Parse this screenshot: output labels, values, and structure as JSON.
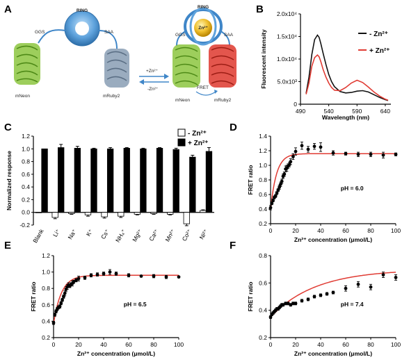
{
  "panels": {
    "A": {
      "letter": "A",
      "ring_label": "RING",
      "ring_label_bound": "RING",
      "zn_ball": "Zn²⁺",
      "left_linker": "GGS",
      "right_linker": "SAA",
      "left_linker_bound": "GGS",
      "right_linker_bound": "SAA",
      "protein_left": "mNeon",
      "protein_right": "mRuby2",
      "protein_left_bound": "mNeon",
      "protein_right_bound": "mRuby2",
      "arrow_add": "+Zn²⁺",
      "arrow_remove": "-Zn²⁺",
      "fret": "FRET",
      "colors": {
        "ring": "#3f86c8",
        "green": "#8cc63f",
        "grey": "#8fa3b8",
        "red": "#e0443a",
        "gold": "#e8b21f"
      }
    },
    "B": {
      "letter": "B"
    },
    "C": {
      "letter": "C"
    },
    "D": {
      "letter": "D"
    },
    "E": {
      "letter": "E"
    },
    "F": {
      "letter": "F"
    }
  },
  "chart_data": [
    {
      "id": "B",
      "type": "line",
      "xlabel": "Wavelength (nm)",
      "ylabel": "Fluorescent intensity",
      "xlim": [
        490,
        650
      ],
      "ylim": [
        0,
        20000
      ],
      "xticks": [
        490,
        540,
        590,
        640
      ],
      "xtick_labels": [
        "490",
        "540",
        "590",
        "640"
      ],
      "yticks": [
        0,
        5000,
        10000,
        15000,
        20000
      ],
      "ytick_labels": [
        "0",
        "5.0x10³",
        "1.0x10⁴",
        "1.5x10⁴",
        "2.0x10⁴"
      ],
      "legend_position": "top-right",
      "series": [
        {
          "name": "- Zn²⁺",
          "color": "#111111",
          "x": [
            500,
            505,
            510,
            515,
            520,
            523,
            526,
            530,
            535,
            540,
            545,
            550,
            560,
            570,
            580,
            590,
            600,
            610,
            620,
            630,
            640,
            645
          ],
          "y": [
            2400,
            6000,
            11000,
            14300,
            15300,
            14800,
            13400,
            11300,
            8800,
            6600,
            5000,
            3900,
            2800,
            2500,
            2600,
            2900,
            3000,
            2700,
            2100,
            1500,
            1000,
            800
          ]
        },
        {
          "name": "+ Zn²⁺",
          "color": "#e03b33",
          "x": [
            500,
            505,
            510,
            515,
            520,
            523,
            526,
            530,
            535,
            540,
            545,
            550,
            560,
            570,
            580,
            590,
            600,
            610,
            620,
            630,
            640,
            645
          ],
          "y": [
            2200,
            4700,
            8400,
            10300,
            10900,
            10500,
            9400,
            7700,
            6000,
            4700,
            3700,
            3100,
            3000,
            3700,
            4700,
            5300,
            4800,
            3800,
            2700,
            1800,
            1100,
            900
          ]
        }
      ]
    },
    {
      "id": "C",
      "type": "bar",
      "ylabel": "Normalized response",
      "ylim": [
        -0.2,
        1.2
      ],
      "yticks": [
        -0.2,
        0.0,
        0.2,
        0.4,
        0.6,
        0.8,
        1.0,
        1.2
      ],
      "ytick_labels": [
        "-0.2",
        "0.0",
        "0.2",
        "0.4",
        "0.6",
        "0.8",
        "1.0",
        "1.2"
      ],
      "categories": [
        "Blank",
        "Li⁺",
        "Na⁺",
        "K⁺",
        "Cs⁺",
        "NH₄⁺",
        "Mg²⁺",
        "Ca²⁺",
        "Mn²⁺",
        "Co²⁺",
        "Ni²⁺"
      ],
      "legend_position": "top-right",
      "series": [
        {
          "name": "- Zn²⁺",
          "fill": "#ffffff",
          "values": [
            0.0,
            -0.08,
            -0.02,
            -0.04,
            -0.07,
            -0.06,
            -0.03,
            -0.02,
            -0.03,
            -0.18,
            0.03
          ],
          "errors": [
            0.0,
            0.02,
            0.01,
            0.02,
            0.02,
            0.02,
            0.01,
            0.01,
            0.01,
            0.03,
            0.01
          ]
        },
        {
          "name": "+ Zn²⁺",
          "fill": "#000000",
          "values": [
            1.0,
            1.02,
            1.01,
            1.0,
            1.0,
            1.01,
            1.0,
            1.01,
            0.99,
            0.87,
            0.96
          ],
          "errors": [
            0.0,
            0.05,
            0.03,
            0.01,
            0.02,
            0.01,
            0.01,
            0.01,
            0.02,
            0.03,
            0.06
          ]
        }
      ]
    },
    {
      "id": "D",
      "type": "scatter",
      "xlabel": "Zn²⁺ concentration (μmol/L)",
      "ylabel": "FRET ratio",
      "annotation": "pH = 6.0",
      "xlim": [
        0,
        100
      ],
      "ylim": [
        0.2,
        1.4
      ],
      "xticks": [
        0,
        20,
        40,
        60,
        80,
        100
      ],
      "xtick_labels": [
        "0",
        "20",
        "40",
        "60",
        "80",
        "100"
      ],
      "yticks": [
        0.2,
        0.4,
        0.6,
        0.8,
        1.0,
        1.2,
        1.4
      ],
      "ytick_labels": [
        "0.2",
        "0.4",
        "0.6",
        "0.8",
        "1.0",
        "1.2",
        "1.4"
      ],
      "points": {
        "x": [
          0,
          1,
          2,
          3,
          4,
          5,
          6,
          7,
          8,
          9,
          10,
          11,
          12,
          13,
          14,
          15,
          16,
          18,
          20,
          25,
          30,
          35,
          40,
          50,
          60,
          70,
          80,
          90,
          100
        ],
        "y": [
          0.42,
          0.48,
          0.52,
          0.56,
          0.58,
          0.62,
          0.66,
          0.7,
          0.74,
          0.78,
          0.85,
          0.88,
          0.95,
          0.96,
          0.99,
          1.01,
          1.05,
          1.12,
          1.19,
          1.27,
          1.22,
          1.26,
          1.25,
          1.17,
          1.16,
          1.15,
          1.15,
          1.14,
          1.15
        ],
        "err": [
          0.03,
          0.02,
          0.02,
          0.02,
          0.02,
          0.02,
          0.02,
          0.03,
          0.03,
          0.03,
          0.03,
          0.03,
          0.04,
          0.04,
          0.03,
          0.03,
          0.04,
          0.04,
          0.05,
          0.05,
          0.04,
          0.04,
          0.06,
          0.03,
          0.02,
          0.03,
          0.03,
          0.04,
          0.02
        ]
      },
      "fit": {
        "color": "#e03b33",
        "ymin": 0.4,
        "ymax": 1.16,
        "k": 0.21
      }
    },
    {
      "id": "E",
      "type": "scatter",
      "xlabel": "Zn²⁺ concentration (μmol/L)",
      "ylabel": "FRET ratio",
      "annotation": "pH = 6.5",
      "xlim": [
        0,
        100
      ],
      "ylim": [
        0.2,
        1.2
      ],
      "xticks": [
        0,
        20,
        40,
        60,
        80,
        100
      ],
      "xtick_labels": [
        "0",
        "20",
        "40",
        "60",
        "80",
        "100"
      ],
      "yticks": [
        0.2,
        0.4,
        0.6,
        0.8,
        1.0,
        1.2
      ],
      "ytick_labels": [
        "0.2",
        "0.4",
        "0.6",
        "0.8",
        "1.0",
        "1.2"
      ],
      "points": {
        "x": [
          0,
          1,
          2,
          3,
          4,
          5,
          6,
          7,
          8,
          9,
          10,
          11,
          12,
          13,
          14,
          15,
          16,
          18,
          20,
          25,
          30,
          35,
          40,
          45,
          50,
          60,
          70,
          80,
          90,
          100
        ],
        "y": [
          0.38,
          0.48,
          0.52,
          0.55,
          0.57,
          0.58,
          0.62,
          0.66,
          0.7,
          0.74,
          0.79,
          0.82,
          0.84,
          0.83,
          0.85,
          0.86,
          0.88,
          0.9,
          0.92,
          0.93,
          0.96,
          0.97,
          0.98,
          1.0,
          0.98,
          0.96,
          0.95,
          0.95,
          0.94,
          0.94
        ],
        "err": [
          0.02,
          0.02,
          0.02,
          0.02,
          0.02,
          0.02,
          0.02,
          0.02,
          0.02,
          0.03,
          0.03,
          0.03,
          0.03,
          0.02,
          0.02,
          0.03,
          0.02,
          0.02,
          0.03,
          0.02,
          0.02,
          0.02,
          0.02,
          0.03,
          0.02,
          0.02,
          0.01,
          0.02,
          0.02,
          0.01
        ]
      },
      "fit": {
        "color": "#e03b33",
        "ymin": 0.37,
        "ymax": 0.96,
        "k": 0.16
      }
    },
    {
      "id": "F",
      "type": "scatter",
      "xlabel": "Zn²⁺ concentration (μmol/L)",
      "ylabel": "FRET ratio",
      "annotation": "pH = 7.4",
      "xlim": [
        0,
        100
      ],
      "ylim": [
        0.2,
        0.8
      ],
      "xticks": [
        0,
        20,
        40,
        60,
        80,
        100
      ],
      "xtick_labels": [
        "0",
        "20",
        "40",
        "60",
        "80",
        "100"
      ],
      "yticks": [
        0.2,
        0.4,
        0.6,
        0.8
      ],
      "ytick_labels": [
        "0.2",
        "0.4",
        "0.6",
        "0.8"
      ],
      "points": {
        "x": [
          0,
          1,
          2,
          3,
          4,
          5,
          6,
          7,
          8,
          9,
          10,
          12,
          14,
          16,
          18,
          20,
          25,
          30,
          35,
          40,
          45,
          50,
          60,
          70,
          80,
          90,
          100
        ],
        "y": [
          0.35,
          0.37,
          0.38,
          0.39,
          0.4,
          0.41,
          0.41,
          0.42,
          0.43,
          0.44,
          0.44,
          0.45,
          0.45,
          0.44,
          0.45,
          0.45,
          0.47,
          0.48,
          0.5,
          0.51,
          0.52,
          0.53,
          0.56,
          0.59,
          0.57,
          0.66,
          0.64
        ],
        "err": [
          0.01,
          0.01,
          0.01,
          0.01,
          0.01,
          0.01,
          0.01,
          0.01,
          0.01,
          0.01,
          0.01,
          0.01,
          0.01,
          0.01,
          0.01,
          0.01,
          0.01,
          0.01,
          0.01,
          0.01,
          0.01,
          0.01,
          0.02,
          0.02,
          0.02,
          0.02,
          0.02
        ]
      },
      "fit": {
        "color": "#e03b33",
        "ymin": 0.35,
        "ymax": 0.7,
        "k": 0.028
      }
    }
  ]
}
